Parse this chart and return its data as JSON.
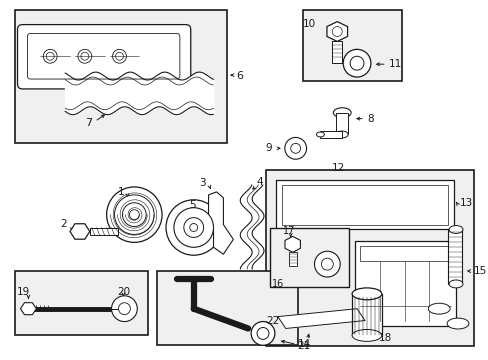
{
  "bg_color": "#ffffff",
  "line_color": "#1a1a1a",
  "figsize": [
    4.89,
    3.6
  ],
  "dpi": 100,
  "box_fill": "#f0f0f0"
}
